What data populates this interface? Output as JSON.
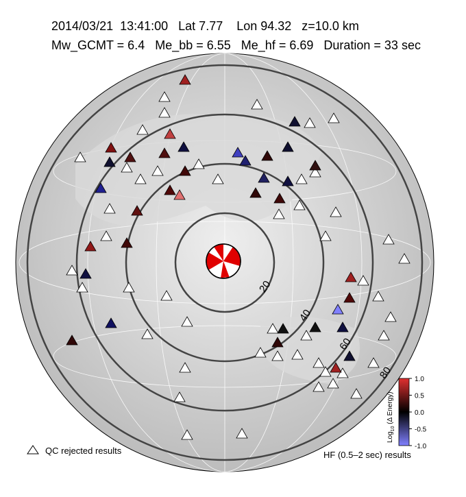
{
  "header": {
    "line1": "2014/03/21  13:41:00   Lat 7.77    Lon 94.32   z=10.0 km",
    "line2": "Mw_GCMT = 6.4   Me_bb = 6.55   Me_hf = 6.69   Duration = 33 sec"
  },
  "contours": {
    "values": [
      20,
      40,
      60,
      80
    ]
  },
  "colorbar": {
    "label_main": "Log",
    "label_sub": "10",
    "label_rest": " (Δ Energy)",
    "lim": [
      -1,
      1
    ],
    "ticks": [
      {
        "value": 1,
        "label": "1.0"
      },
      {
        "value": 0.5,
        "label": "0.5"
      },
      {
        "value": 0,
        "label": "0.0"
      },
      {
        "value": -0.5,
        "label": "-0.5"
      },
      {
        "value": -1,
        "label": "-1.0"
      }
    ]
  },
  "legend": {
    "rejected": "QC rejected results",
    "hf": "HF (0.5–2 sec) results"
  }
}
